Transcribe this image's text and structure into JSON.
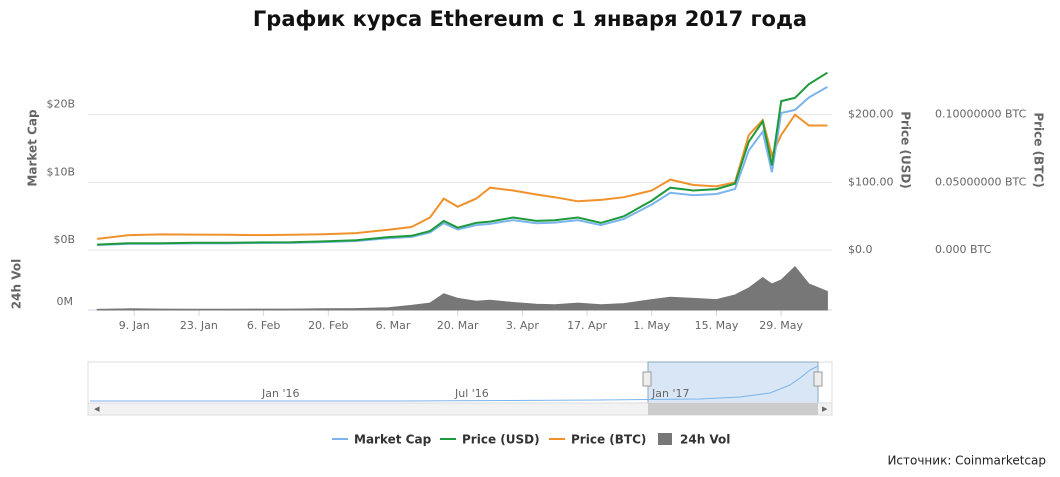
{
  "chart_data": {
    "type": "line",
    "title": "График курса Ethereum с 1 января 2017 года",
    "source": "Источник: Coinmarketcap",
    "x": [
      "2017-01-01",
      "2017-01-08",
      "2017-01-15",
      "2017-01-22",
      "2017-01-29",
      "2017-02-05",
      "2017-02-12",
      "2017-02-19",
      "2017-02-26",
      "2017-03-05",
      "2017-03-10",
      "2017-03-14",
      "2017-03-17",
      "2017-03-20",
      "2017-03-24",
      "2017-03-27",
      "2017-04-01",
      "2017-04-06",
      "2017-04-10",
      "2017-04-15",
      "2017-04-20",
      "2017-04-25",
      "2017-05-01",
      "2017-05-05",
      "2017-05-10",
      "2017-05-15",
      "2017-05-19",
      "2017-05-22",
      "2017-05-25",
      "2017-05-27",
      "2017-05-29",
      "2017-06-01",
      "2017-06-04",
      "2017-06-08"
    ],
    "xlim": [
      "2016-12-30",
      "2017-06-09"
    ],
    "xticks": [
      {
        "value": "2017-01-09",
        "label": "9. Jan"
      },
      {
        "value": "2017-01-23",
        "label": "23. Jan"
      },
      {
        "value": "2017-02-06",
        "label": "6. Feb"
      },
      {
        "value": "2017-02-20",
        "label": "20. Feb"
      },
      {
        "value": "2017-03-06",
        "label": "6. Mar"
      },
      {
        "value": "2017-03-20",
        "label": "20. Mar"
      },
      {
        "value": "2017-04-03",
        "label": "3. Apr"
      },
      {
        "value": "2017-04-17",
        "label": "17. Apr"
      },
      {
        "value": "2017-05-01",
        "label": "1. May"
      },
      {
        "value": "2017-05-15",
        "label": "15. May"
      },
      {
        "value": "2017-05-29",
        "label": "29. May"
      }
    ],
    "ylabel": "Market Cap",
    "ylim": [
      0,
      30
    ],
    "yticks": [
      {
        "value": 0,
        "label": "$0B"
      },
      {
        "value": 10,
        "label": "$10B"
      },
      {
        "value": 20,
        "label": "$20B"
      }
    ],
    "y2label": "Price (USD)",
    "y2lim": [
      0,
      300
    ],
    "y2ticks": [
      {
        "value": 0,
        "label": "$0.0"
      },
      {
        "value": 100,
        "label": "$100.00"
      },
      {
        "value": 200,
        "label": "$200.00"
      }
    ],
    "y3label": "Price (BTC)",
    "y3lim": [
      0,
      0.15
    ],
    "y3ticks": [
      {
        "value": 0,
        "label": "0.000 BTC"
      },
      {
        "value": 0.05,
        "label": "0.05000000 BTC"
      },
      {
        "value": 0.1,
        "label": "0.10000000 BTC"
      }
    ],
    "y4label": "24h Vol",
    "y4lim": [
      0,
      900
    ],
    "y4ticks": [
      {
        "value": 0,
        "label": "0M"
      }
    ],
    "grid": true,
    "series": [
      {
        "name": "Market Cap",
        "color": "#7cb5ec",
        "axis": "y",
        "type": "line",
        "values": [
          0.74,
          0.92,
          0.92,
          0.98,
          0.98,
          1.04,
          1.05,
          1.17,
          1.33,
          1.75,
          1.93,
          2.58,
          3.96,
          3.04,
          3.68,
          3.86,
          4.42,
          3.96,
          4.05,
          4.42,
          3.68,
          4.6,
          6.72,
          8.46,
          8.1,
          8.28,
          9.02,
          14.72,
          17.48,
          11.5,
          20.24,
          20.7,
          22.54,
          24.1
        ]
      },
      {
        "name": "Price (USD)",
        "color": "#1e9a3c",
        "axis": "y2",
        "type": "line",
        "values": [
          8,
          10,
          10,
          10.6,
          10.7,
          11.3,
          11.4,
          12.7,
          14.5,
          19,
          21,
          28,
          43,
          33,
          40,
          42,
          48,
          43,
          44,
          48,
          40,
          50,
          73,
          92,
          88,
          90,
          98,
          160,
          190,
          125,
          220,
          225,
          245,
          262
        ]
      },
      {
        "name": "Price (BTC)",
        "color": "#f0922b",
        "axis": "y3",
        "type": "line",
        "values": [
          0.0082,
          0.011,
          0.0115,
          0.0114,
          0.0112,
          0.011,
          0.0113,
          0.0117,
          0.0125,
          0.015,
          0.017,
          0.024,
          0.038,
          0.032,
          0.038,
          0.046,
          0.044,
          0.041,
          0.039,
          0.036,
          0.037,
          0.039,
          0.044,
          0.052,
          0.048,
          0.047,
          0.05,
          0.085,
          0.096,
          0.07,
          0.085,
          0.1,
          0.092,
          0.092
        ]
      },
      {
        "name": "24h Vol",
        "color": "#777777",
        "axis": "y4",
        "type": "area",
        "values": [
          10,
          20,
          15,
          12,
          12,
          15,
          15,
          20,
          25,
          40,
          80,
          120,
          280,
          200,
          150,
          170,
          130,
          100,
          90,
          120,
          90,
          110,
          180,
          220,
          200,
          180,
          260,
          380,
          560,
          450,
          520,
          750,
          450,
          320
        ]
      }
    ],
    "navigator_ticks": [
      "Jan '16",
      "Jul '16",
      "Jan '17"
    ]
  }
}
